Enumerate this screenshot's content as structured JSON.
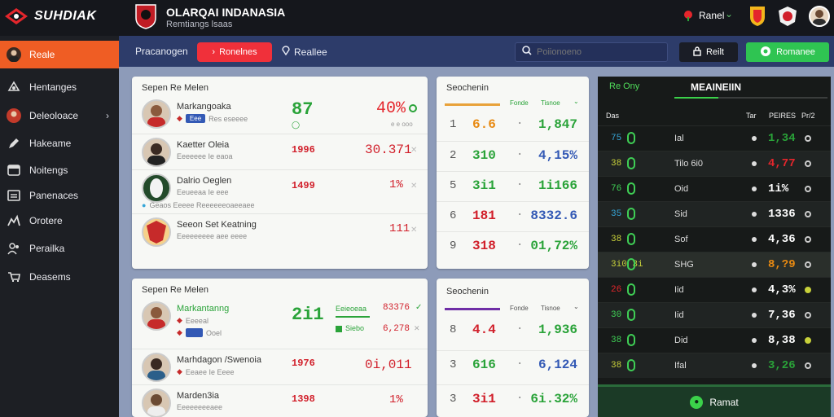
{
  "app": {
    "brand": "SUHDIAK",
    "title": "OLARQAI INDANASIA",
    "subtitle": "Remtiangs lsaas"
  },
  "header": {
    "user": "Ranel"
  },
  "sidebar": {
    "items": [
      {
        "label": "Reale",
        "icon": "user-icon",
        "active": true
      },
      {
        "label": "Hentanges",
        "icon": "gear-icon"
      },
      {
        "label": "Deleoloace",
        "icon": "person-icon",
        "chevron": true
      },
      {
        "label": "Hakeame",
        "icon": "pencil-icon"
      },
      {
        "label": "Noitengs",
        "icon": "panel-icon"
      },
      {
        "label": "Panenaces",
        "icon": "document-icon"
      },
      {
        "label": "Orotere",
        "icon": "chart-icon"
      },
      {
        "label": "Perailka",
        "icon": "people-icon"
      },
      {
        "label": "Deasems",
        "icon": "cart-icon"
      }
    ]
  },
  "toolbar": {
    "label": "Pracanogen",
    "active_tab": "Ronelnes",
    "tab": "Reallee",
    "search_placeholder": "Poiionoeno",
    "dark_button": "Reilt",
    "green_button": "Romanee"
  },
  "matches_top": {
    "title": "Sepen Re Melen",
    "rows": [
      {
        "name": "Markangoaka",
        "sub": "Eee",
        "sub2": "Res eseeee",
        "score": "87",
        "pct": "40%",
        "pct_sub": "e e ooo",
        "score_color": "#2aa339",
        "pct_color": "#e4262c",
        "big": true
      },
      {
        "name": "Kaetter Oleia",
        "sub": "Eeeeeee Ie eaoa",
        "score": "1996",
        "pct": "30.371",
        "score_color": "#d11f2a",
        "pct_color": "#d11f2a"
      },
      {
        "name": "Dalrio Oeglen",
        "sub": "Eeueeaa Ie eee",
        "sub2": "Geaos Eeeee Reeeeeeoaeeaee",
        "score": "1499",
        "pct": "1%",
        "score_color": "#d11f2a",
        "pct_color": "#d11f2a"
      },
      {
        "name": "Seeon Set Keatning",
        "sub": "Eeeeeeeee aee eeee",
        "score": "",
        "pct": "111",
        "score_color": "#d11f2a",
        "pct_color": "#d11f2a"
      }
    ]
  },
  "standings_top": {
    "title": "Seochenin",
    "col1": "Fonde",
    "col2": "Tisnoe",
    "rows": [
      {
        "rank": "1",
        "val": "6.6",
        "res": "1,847",
        "val_color": "#e88a12",
        "res_color": "#2aa339"
      },
      {
        "rank": "2",
        "val": "310",
        "res": "4,15%",
        "val_color": "#2aa339",
        "res_color": "#3359b5"
      },
      {
        "rank": "5",
        "val": "3i1",
        "res": "1i166",
        "val_color": "#2aa339",
        "res_color": "#2aa339"
      },
      {
        "rank": "6",
        "val": "181",
        "res": "8332.6",
        "val_color": "#d11f2a",
        "res_color": "#3359b5"
      },
      {
        "rank": "9",
        "val": "318",
        "res": "01,72%",
        "val_color": "#d11f2a",
        "res_color": "#2aa339"
      }
    ]
  },
  "matches_bottom": {
    "title": "Sepen Re Melen",
    "rows": [
      {
        "name": "Markantanng",
        "sub": "Eeeeal",
        "sub2": "Ooel",
        "score": "2i1",
        "pct": "83376",
        "pct_label": "Eeieoeaa",
        "pct2": "6,278",
        "pct2_label": "Siebo",
        "score_color": "#2aa339",
        "pct_color": "#d11f2a",
        "big": true
      },
      {
        "name": "Marhdagon /Swenoia",
        "sub": "Eeaee Ie Eeee",
        "score": "1976",
        "pct": "0i,011",
        "score_color": "#d11f2a",
        "pct_color": "#d11f2a"
      },
      {
        "name": "Marden3ia",
        "sub": "Eeeeeeeeaee",
        "score": "1398",
        "pct": "1%",
        "score_color": "#d11f2a",
        "pct_color": "#d11f2a"
      }
    ]
  },
  "standings_bottom": {
    "title": "Seochenin",
    "col1": "Fonde",
    "col2": "Tisnoe",
    "rows": [
      {
        "rank": "8",
        "val": "4.4",
        "res": "1,936",
        "val_color": "#d11f2a",
        "res_color": "#2aa339"
      },
      {
        "rank": "3",
        "val": "616",
        "res": "6,124",
        "val_color": "#2aa339",
        "res_color": "#3359b5"
      },
      {
        "rank": "3",
        "val": "3i1",
        "res": "6i.32%",
        "val_color": "#d11f2a",
        "res_color": "#2aa339"
      }
    ]
  },
  "live": {
    "left": "Re Ony",
    "title": "MEAINEIIN",
    "col_a": "Das",
    "col_b": "Tar",
    "col_c": "PEIRES",
    "col_d": "Pr/2",
    "rows": [
      {
        "a": "75",
        "a_color": "#36a6d8",
        "mid": "Ial",
        "val": "1,34",
        "val_color": "#2aa339"
      },
      {
        "a": "38",
        "a_color": "#c8d13a",
        "mid": "Tilo   6i0",
        "val": "4,77",
        "val_color": "#e4262c"
      },
      {
        "a": "76",
        "a_color": "#3fcf55",
        "mid": "Oid",
        "val": "1i%",
        "val_color": "#ffffff"
      },
      {
        "a": "35",
        "a_color": "#36a6d8",
        "mid": "Sid",
        "val": "1336",
        "val_color": "#ffffff"
      },
      {
        "a": "38",
        "a_color": "#c8d13a",
        "mid": "Sof",
        "val": "4,36",
        "val_color": "#ffffff"
      },
      {
        "a": "3i0 3i",
        "a_color": "#c8d13a",
        "mid": "SHG",
        "val": "8,?9",
        "val_color": "#e88a12"
      },
      {
        "a": "26",
        "a_color": "#e4262c",
        "mid": "Iid",
        "val": "4,3%",
        "val_color": "#ffffff"
      },
      {
        "a": "30",
        "a_color": "#3fcf55",
        "mid": "Iid",
        "val": "7,36",
        "val_color": "#ffffff"
      },
      {
        "a": "38",
        "a_color": "#3fcf55",
        "mid": "Did",
        "val": "8,38",
        "val_color": "#ffffff"
      },
      {
        "a": "38",
        "a_color": "#c8d13a",
        "mid": "Ifal",
        "val": "3,26",
        "val_color": "#2aa339"
      }
    ],
    "footer": "Ramat"
  }
}
